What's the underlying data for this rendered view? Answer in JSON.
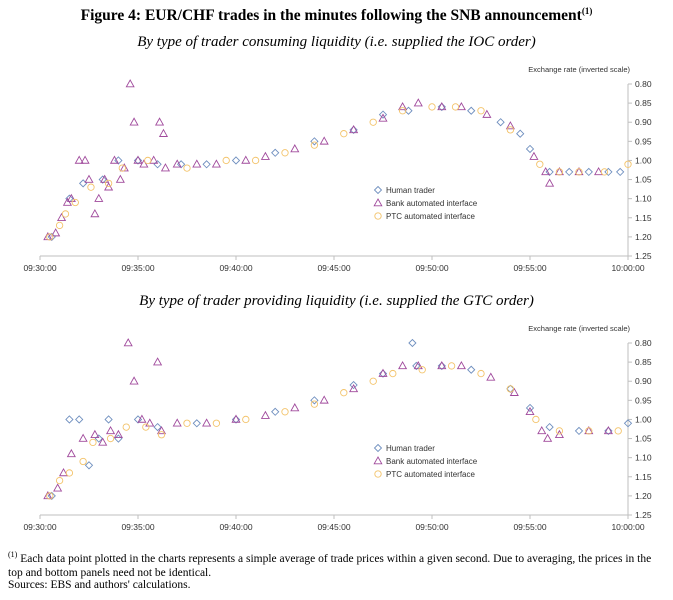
{
  "figure": {
    "title": "Figure 4: EUR/CHF trades in the minutes following the SNB announcement",
    "title_sup": "(1)",
    "footnote_sup": "(1)",
    "footnote_text": "Each data point plotted in the charts represents a simple average of trade prices within a given second. Due to averaging, the prices in the top and bottom panels need not be identical.",
    "sources": "Sources: EBS and authors' calculations."
  },
  "colors": {
    "human": "#6f8fbf",
    "bank": "#a04a9c",
    "ptc": "#f3c36a",
    "axis": "#bfbfbf"
  },
  "chart_data": [
    {
      "type": "scatter",
      "title": "By type of trader consuming liquidity (i.e. supplied the IOC order)",
      "ylabel": "Exchange rate (inverted scale)",
      "y_inverted": true,
      "ylim": [
        0.8,
        1.25
      ],
      "yticks": [
        "0.80",
        "0.85",
        "0.90",
        "0.95",
        "1.00",
        "1.05",
        "1.10",
        "1.15",
        "1.20",
        "1.25"
      ],
      "xlim": [
        "09:30:00",
        "10:00:00"
      ],
      "xticks": [
        "09:30:00",
        "09:35:00",
        "09:40:00",
        "09:45:00",
        "09:50:00",
        "09:55:00",
        "10:00:00"
      ],
      "legend_position": "center-left",
      "series": [
        {
          "name": "Human trader",
          "marker": "diamond",
          "points": [
            [
              0.6,
              1.2
            ],
            [
              1.5,
              1.1
            ],
            [
              2.2,
              1.06
            ],
            [
              3.2,
              1.05
            ],
            [
              4.0,
              1.0
            ],
            [
              5.0,
              1.0
            ],
            [
              6.0,
              1.01
            ],
            [
              7.2,
              1.01
            ],
            [
              8.5,
              1.01
            ],
            [
              10.0,
              1.0
            ],
            [
              12.0,
              0.98
            ],
            [
              14.0,
              0.95
            ],
            [
              16.0,
              0.92
            ],
            [
              17.5,
              0.88
            ],
            [
              18.8,
              0.87
            ],
            [
              20.5,
              0.86
            ],
            [
              22.0,
              0.87
            ],
            [
              23.5,
              0.9
            ],
            [
              24.5,
              0.93
            ],
            [
              25.0,
              0.97
            ],
            [
              26.0,
              1.03
            ],
            [
              27.0,
              1.03
            ],
            [
              28.0,
              1.03
            ],
            [
              29.0,
              1.03
            ],
            [
              29.6,
              1.03
            ]
          ]
        },
        {
          "name": "Bank automated interface",
          "marker": "triangle",
          "points": [
            [
              0.4,
              1.2
            ],
            [
              0.8,
              1.19
            ],
            [
              1.1,
              1.15
            ],
            [
              1.4,
              1.11
            ],
            [
              1.6,
              1.1
            ],
            [
              2.0,
              1.0
            ],
            [
              2.3,
              1.0
            ],
            [
              2.5,
              1.05
            ],
            [
              2.8,
              1.14
            ],
            [
              3.0,
              1.1
            ],
            [
              3.3,
              1.05
            ],
            [
              3.5,
              1.07
            ],
            [
              3.8,
              1.0
            ],
            [
              4.1,
              1.05
            ],
            [
              4.3,
              1.02
            ],
            [
              4.6,
              0.8
            ],
            [
              4.8,
              0.9
            ],
            [
              5.0,
              1.0
            ],
            [
              5.3,
              1.01
            ],
            [
              5.8,
              1.0
            ],
            [
              6.1,
              0.9
            ],
            [
              6.3,
              0.93
            ],
            [
              6.4,
              1.02
            ],
            [
              7.0,
              1.01
            ],
            [
              8.0,
              1.01
            ],
            [
              9.0,
              1.01
            ],
            [
              10.5,
              1.0
            ],
            [
              11.5,
              0.99
            ],
            [
              13.0,
              0.97
            ],
            [
              14.5,
              0.95
            ],
            [
              16.0,
              0.92
            ],
            [
              17.5,
              0.89
            ],
            [
              18.5,
              0.86
            ],
            [
              19.3,
              0.85
            ],
            [
              20.5,
              0.86
            ],
            [
              21.5,
              0.86
            ],
            [
              22.8,
              0.88
            ],
            [
              24.0,
              0.91
            ],
            [
              25.2,
              0.99
            ],
            [
              25.8,
              1.03
            ],
            [
              26.0,
              1.06
            ],
            [
              26.5,
              1.03
            ],
            [
              27.5,
              1.03
            ],
            [
              28.5,
              1.03
            ]
          ]
        },
        {
          "name": "PTC automated interface",
          "marker": "circle",
          "points": [
            [
              0.5,
              1.2
            ],
            [
              1.0,
              1.17
            ],
            [
              1.3,
              1.14
            ],
            [
              1.8,
              1.11
            ],
            [
              2.6,
              1.07
            ],
            [
              3.5,
              1.06
            ],
            [
              4.2,
              1.02
            ],
            [
              5.5,
              1.0
            ],
            [
              7.5,
              1.02
            ],
            [
              9.5,
              1.0
            ],
            [
              11.0,
              1.0
            ],
            [
              12.5,
              0.98
            ],
            [
              14.0,
              0.96
            ],
            [
              15.5,
              0.93
            ],
            [
              17.0,
              0.9
            ],
            [
              18.5,
              0.87
            ],
            [
              20.0,
              0.86
            ],
            [
              21.2,
              0.86
            ],
            [
              22.5,
              0.87
            ],
            [
              24.0,
              0.92
            ],
            [
              25.5,
              1.01
            ],
            [
              26.5,
              1.03
            ],
            [
              27.5,
              1.03
            ],
            [
              28.8,
              1.03
            ],
            [
              30.0,
              1.01
            ]
          ]
        }
      ]
    },
    {
      "type": "scatter",
      "title": "By type of trader providing liquidity (i.e. supplied the GTC order)",
      "ylabel": "Exchange rate (inverted scale)",
      "y_inverted": true,
      "ylim": [
        0.8,
        1.25
      ],
      "yticks": [
        "0.80",
        "0.85",
        "0.90",
        "0.95",
        "1.00",
        "1.05",
        "1.10",
        "1.15",
        "1.20",
        "1.25"
      ],
      "xlim": [
        "09:30:00",
        "10:00:00"
      ],
      "xticks": [
        "09:30:00",
        "09:35:00",
        "09:40:00",
        "09:45:00",
        "09:50:00",
        "09:55:00",
        "10:00:00"
      ],
      "legend_position": "center-left",
      "series": [
        {
          "name": "Human trader",
          "marker": "diamond",
          "points": [
            [
              0.6,
              1.2
            ],
            [
              1.5,
              1.0
            ],
            [
              2.0,
              1.0
            ],
            [
              2.5,
              1.12
            ],
            [
              3.0,
              1.05
            ],
            [
              3.5,
              1.0
            ],
            [
              4.0,
              1.05
            ],
            [
              5.0,
              1.0
            ],
            [
              6.0,
              1.02
            ],
            [
              8.0,
              1.01
            ],
            [
              10.0,
              1.0
            ],
            [
              12.0,
              0.98
            ],
            [
              14.0,
              0.95
            ],
            [
              16.0,
              0.91
            ],
            [
              17.5,
              0.88
            ],
            [
              19.0,
              0.8
            ],
            [
              19.2,
              0.86
            ],
            [
              20.5,
              0.86
            ],
            [
              22.0,
              0.87
            ],
            [
              24.0,
              0.92
            ],
            [
              25.0,
              0.97
            ],
            [
              26.0,
              1.02
            ],
            [
              27.5,
              1.03
            ],
            [
              29.0,
              1.03
            ],
            [
              30.0,
              1.01
            ]
          ]
        },
        {
          "name": "Bank automated interface",
          "marker": "triangle",
          "points": [
            [
              0.4,
              1.2
            ],
            [
              0.9,
              1.18
            ],
            [
              1.2,
              1.14
            ],
            [
              1.6,
              1.09
            ],
            [
              2.2,
              1.05
            ],
            [
              2.8,
              1.04
            ],
            [
              3.2,
              1.06
            ],
            [
              3.6,
              1.03
            ],
            [
              4.0,
              1.04
            ],
            [
              4.5,
              0.8
            ],
            [
              4.8,
              0.9
            ],
            [
              5.2,
              1.0
            ],
            [
              5.6,
              1.01
            ],
            [
              6.0,
              0.85
            ],
            [
              6.2,
              1.03
            ],
            [
              7.0,
              1.01
            ],
            [
              8.5,
              1.01
            ],
            [
              10.0,
              1.0
            ],
            [
              11.5,
              0.99
            ],
            [
              13.0,
              0.97
            ],
            [
              14.5,
              0.95
            ],
            [
              16.0,
              0.92
            ],
            [
              17.5,
              0.88
            ],
            [
              18.5,
              0.86
            ],
            [
              19.3,
              0.86
            ],
            [
              20.5,
              0.86
            ],
            [
              21.5,
              0.86
            ],
            [
              23.0,
              0.89
            ],
            [
              24.2,
              0.93
            ],
            [
              25.0,
              0.98
            ],
            [
              25.6,
              1.03
            ],
            [
              25.9,
              1.05
            ],
            [
              26.5,
              1.04
            ],
            [
              28.0,
              1.03
            ],
            [
              29.0,
              1.03
            ]
          ]
        },
        {
          "name": "PTC automated interface",
          "marker": "circle",
          "points": [
            [
              0.5,
              1.2
            ],
            [
              1.0,
              1.16
            ],
            [
              1.5,
              1.14
            ],
            [
              2.2,
              1.11
            ],
            [
              2.7,
              1.06
            ],
            [
              3.6,
              1.05
            ],
            [
              4.4,
              1.02
            ],
            [
              5.4,
              1.02
            ],
            [
              6.2,
              1.04
            ],
            [
              7.5,
              1.01
            ],
            [
              9.0,
              1.01
            ],
            [
              10.5,
              1.0
            ],
            [
              12.5,
              0.98
            ],
            [
              14.0,
              0.96
            ],
            [
              15.5,
              0.93
            ],
            [
              17.0,
              0.9
            ],
            [
              18.0,
              0.88
            ],
            [
              19.5,
              0.87
            ],
            [
              21.0,
              0.86
            ],
            [
              22.5,
              0.88
            ],
            [
              24.0,
              0.92
            ],
            [
              25.3,
              1.0
            ],
            [
              26.5,
              1.03
            ],
            [
              28.0,
              1.03
            ],
            [
              29.5,
              1.03
            ]
          ]
        }
      ]
    }
  ]
}
